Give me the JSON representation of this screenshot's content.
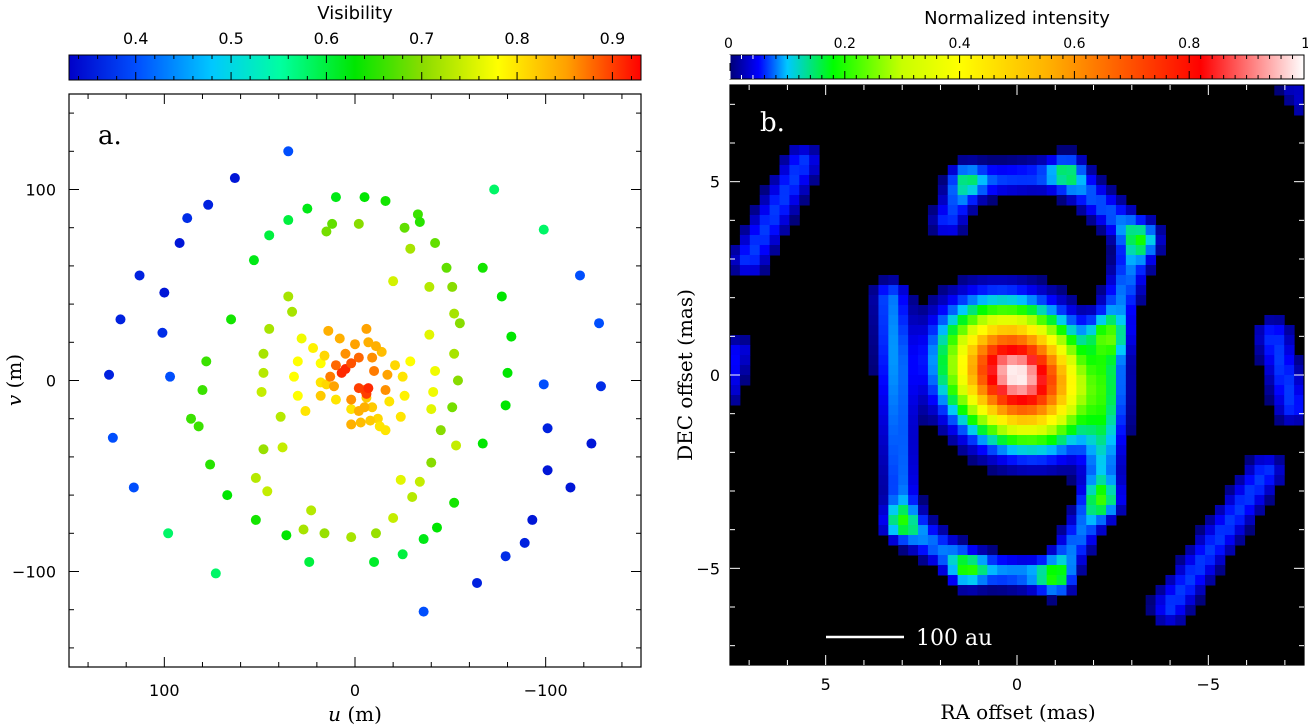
{
  "chart_data": [
    {
      "type": "scatter",
      "panel_label": "a.",
      "colorbar_label": "Visibility",
      "colorbar_ticks": [
        "0.4",
        "0.5",
        "0.6",
        "0.7",
        "0.8",
        "0.9"
      ],
      "colorbar_range": [
        0.33,
        0.93
      ],
      "xlabel_var": "u",
      "xlabel_unit": " (m)",
      "ylabel_var": "v",
      "ylabel_unit": " (m)",
      "xlim": [
        150,
        -150
      ],
      "ylim": [
        -150,
        150
      ],
      "x_ticks": [
        {
          "value": 100,
          "label": "100"
        },
        {
          "value": 0,
          "label": "0"
        },
        {
          "value": -100,
          "label": "−100"
        }
      ],
      "y_ticks": [
        {
          "value": 100,
          "label": "100"
        },
        {
          "value": 0,
          "label": "0"
        },
        {
          "value": -100,
          "label": "−100"
        }
      ],
      "grid": false,
      "points": [
        [
          35,
          120,
          0.4
        ],
        [
          63,
          106,
          0.35
        ],
        [
          -73,
          100,
          0.58
        ],
        [
          77,
          92,
          0.36
        ],
        [
          88,
          85,
          0.37
        ],
        [
          92,
          72,
          0.35
        ],
        [
          113,
          55,
          0.36
        ],
        [
          -118,
          55,
          0.4
        ],
        [
          100,
          46,
          0.35
        ],
        [
          123,
          32,
          0.36
        ],
        [
          101,
          25,
          0.37
        ],
        [
          -128,
          30,
          0.4
        ],
        [
          129,
          3,
          0.36
        ],
        [
          97,
          2,
          0.4
        ],
        [
          -129,
          -3,
          0.37
        ],
        [
          -99,
          -2,
          0.4
        ],
        [
          127,
          -30,
          0.4
        ],
        [
          -101,
          -25,
          0.36
        ],
        [
          -124,
          -33,
          0.35
        ],
        [
          -101,
          -47,
          0.35
        ],
        [
          116,
          -56,
          0.4
        ],
        [
          -113,
          -56,
          0.35
        ],
        [
          -93,
          -73,
          0.35
        ],
        [
          -89,
          -85,
          0.36
        ],
        [
          -79,
          -92,
          0.37
        ],
        [
          -64,
          -106,
          0.36
        ],
        [
          -36,
          -121,
          0.4
        ],
        [
          -99,
          79,
          0.58
        ],
        [
          98,
          -80,
          0.58
        ],
        [
          73,
          -101,
          0.58
        ],
        [
          10,
          96,
          0.62
        ],
        [
          -5,
          96,
          0.63
        ],
        [
          -16,
          94,
          0.64
        ],
        [
          -33,
          87,
          0.66
        ],
        [
          -34,
          83,
          0.65
        ],
        [
          -42,
          72,
          0.68
        ],
        [
          -48,
          59,
          0.68
        ],
        [
          -51,
          49,
          0.7
        ],
        [
          -52,
          35,
          0.72
        ],
        [
          25,
          90,
          0.62
        ],
        [
          35,
          84,
          0.6
        ],
        [
          45,
          76,
          0.6
        ],
        [
          53,
          63,
          0.62
        ],
        [
          65,
          32,
          0.64
        ],
        [
          78,
          10,
          0.66
        ],
        [
          80,
          -5,
          0.66
        ],
        [
          86,
          -20,
          0.66
        ],
        [
          82,
          -24,
          0.66
        ],
        [
          76,
          -44,
          0.65
        ],
        [
          67,
          -60,
          0.63
        ],
        [
          52,
          -73,
          0.64
        ],
        [
          36,
          -81,
          0.63
        ],
        [
          24,
          -95,
          0.6
        ],
        [
          -10,
          -95,
          0.61
        ],
        [
          -25,
          -91,
          0.6
        ],
        [
          -36,
          -83,
          0.62
        ],
        [
          -43,
          -77,
          0.63
        ],
        [
          -52,
          -64,
          0.64
        ],
        [
          -67,
          -33,
          0.63
        ],
        [
          -79,
          -13,
          0.63
        ],
        [
          -80,
          4,
          0.63
        ],
        [
          -82,
          23,
          0.63
        ],
        [
          -77,
          44,
          0.63
        ],
        [
          -67,
          59,
          0.64
        ],
        [
          -26,
          80,
          0.68
        ],
        [
          12,
          82,
          0.68
        ],
        [
          -2,
          82,
          0.7
        ],
        [
          -29,
          69,
          0.72
        ],
        [
          -39,
          49,
          0.73
        ],
        [
          33,
          36,
          0.72
        ],
        [
          35,
          44,
          0.72
        ],
        [
          45,
          27,
          0.72
        ],
        [
          48,
          14,
          0.72
        ],
        [
          48,
          4,
          0.73
        ],
        [
          49,
          -6,
          0.74
        ],
        [
          39,
          -19,
          0.73
        ],
        [
          38,
          -35,
          0.74
        ],
        [
          46,
          -58,
          0.74
        ],
        [
          -20,
          52,
          0.75
        ],
        [
          15,
          78,
          0.69
        ],
        [
          27,
          -78,
          0.72
        ],
        [
          23,
          -68,
          0.73
        ],
        [
          16,
          -80,
          0.71
        ],
        [
          2,
          -82,
          0.72
        ],
        [
          -11,
          -80,
          0.71
        ],
        [
          -20,
          -72,
          0.74
        ],
        [
          -30,
          -61,
          0.73
        ],
        [
          -34,
          -53,
          0.74
        ],
        [
          -40,
          -43,
          0.7
        ],
        [
          -45,
          -26,
          0.7
        ],
        [
          -51,
          -14,
          0.69
        ],
        [
          -54,
          0,
          0.7
        ],
        [
          -52,
          14,
          0.72
        ],
        [
          -55,
          30,
          0.7
        ],
        [
          -53,
          -34,
          0.74
        ],
        [
          -24,
          -52,
          0.76
        ],
        [
          48,
          -36,
          0.71
        ],
        [
          52,
          -51,
          0.73
        ],
        [
          -42,
          5,
          0.77
        ],
        [
          -41,
          -6,
          0.77
        ],
        [
          -40,
          -15,
          0.76
        ],
        [
          -39,
          24,
          0.76
        ],
        [
          -29,
          10,
          0.78
        ],
        [
          30,
          10,
          0.78
        ],
        [
          32,
          2,
          0.78
        ],
        [
          30,
          -8,
          0.78
        ],
        [
          26,
          -16,
          0.8
        ],
        [
          18,
          9,
          0.78
        ],
        [
          22,
          17,
          0.79
        ],
        [
          28,
          22,
          0.77
        ],
        [
          18,
          -1,
          0.8
        ],
        [
          16,
          13,
          0.81
        ],
        [
          -16,
          -26,
          0.8
        ],
        [
          -12,
          -20,
          0.81
        ],
        [
          -25,
          2,
          0.8
        ],
        [
          -26,
          -8,
          0.79
        ],
        [
          -24,
          -19,
          0.8
        ],
        [
          -18,
          -11,
          0.8
        ],
        [
          -9,
          -14,
          0.82
        ],
        [
          2,
          -15,
          0.8
        ],
        [
          10,
          -10,
          0.8
        ],
        [
          15,
          -2,
          0.81
        ],
        [
          -6,
          -9,
          0.82
        ],
        [
          -21,
          8,
          0.81
        ],
        [
          -14,
          15,
          0.83
        ],
        [
          -11,
          18,
          0.84
        ],
        [
          -7,
          20,
          0.84
        ],
        [
          0,
          19,
          0.85
        ],
        [
          8,
          22,
          0.84
        ],
        [
          14,
          26,
          0.84
        ],
        [
          -6,
          27,
          0.85
        ],
        [
          -10,
          5,
          0.87
        ],
        [
          -17,
          3,
          0.85
        ],
        [
          -16,
          -5,
          0.86
        ],
        [
          -5,
          -5,
          0.88
        ],
        [
          2,
          -10,
          0.86
        ],
        [
          -2,
          12,
          0.88
        ],
        [
          5,
          14,
          0.86
        ],
        [
          -9,
          12,
          0.86
        ],
        [
          -5,
          -14,
          0.84
        ],
        [
          -2,
          -16,
          0.84
        ],
        [
          -8,
          -21,
          0.82
        ],
        [
          2,
          -23,
          0.84
        ],
        [
          -13,
          -24,
          0.8
        ],
        [
          -3,
          -22,
          0.83
        ],
        [
          -2,
          -4,
          0.9
        ],
        [
          -6,
          -7,
          0.9
        ],
        [
          -7,
          -4,
          0.91
        ],
        [
          7,
          4,
          0.91
        ],
        [
          5,
          6,
          0.91
        ],
        [
          2,
          9,
          0.89
        ],
        [
          10,
          8,
          0.88
        ],
        [
          13,
          2,
          0.87
        ],
        [
          11,
          -3,
          0.85
        ],
        [
          18,
          -8,
          0.82
        ]
      ]
    },
    {
      "type": "heatmap",
      "panel_label": "b.",
      "colorbar_label": "Normalized intensity",
      "colorbar_ticks": [
        "0",
        "0.2",
        "0.4",
        "0.6",
        "0.8",
        "1"
      ],
      "colorbar_range": [
        0,
        1
      ],
      "xlabel": "RA offset (mas)",
      "ylabel": "DEC offset (mas)",
      "xlim": [
        7.5,
        -7.5
      ],
      "ylim": [
        -7.5,
        7.5
      ],
      "x_ticks": [
        {
          "value": 5,
          "label": "5"
        },
        {
          "value": 0,
          "label": "0"
        },
        {
          "value": -5,
          "label": "−5"
        }
      ],
      "y_ticks": [
        {
          "value": 5,
          "label": "5"
        },
        {
          "value": 0,
          "label": "0"
        },
        {
          "value": -5,
          "label": "−5"
        }
      ],
      "scale_bar_label": "100 au"
    }
  ]
}
